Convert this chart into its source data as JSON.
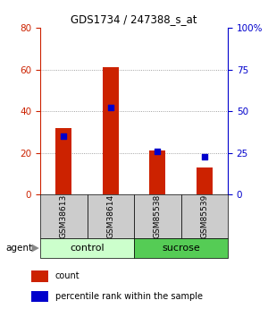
{
  "title": "GDS1734 / 247388_s_at",
  "samples": [
    "GSM38613",
    "GSM38614",
    "GSM85538",
    "GSM85539"
  ],
  "red_bars": [
    32,
    61,
    21,
    13
  ],
  "blue_dots": [
    35,
    52,
    26,
    23
  ],
  "left_ylim": [
    0,
    80
  ],
  "left_yticks": [
    0,
    20,
    40,
    60,
    80
  ],
  "right_yticks": [
    0,
    25,
    50,
    75,
    100
  ],
  "right_yticklabels": [
    "0",
    "25",
    "50",
    "75",
    "100%"
  ],
  "bar_color": "#cc2200",
  "dot_color": "#0000cc",
  "control_color": "#ccffcc",
  "sucrose_color": "#55cc55",
  "sample_box_color": "#cccccc",
  "grid_color": "#888888",
  "legend_count_label": "count",
  "legend_pct_label": "percentile rank within the sample",
  "agent_label": "agent"
}
